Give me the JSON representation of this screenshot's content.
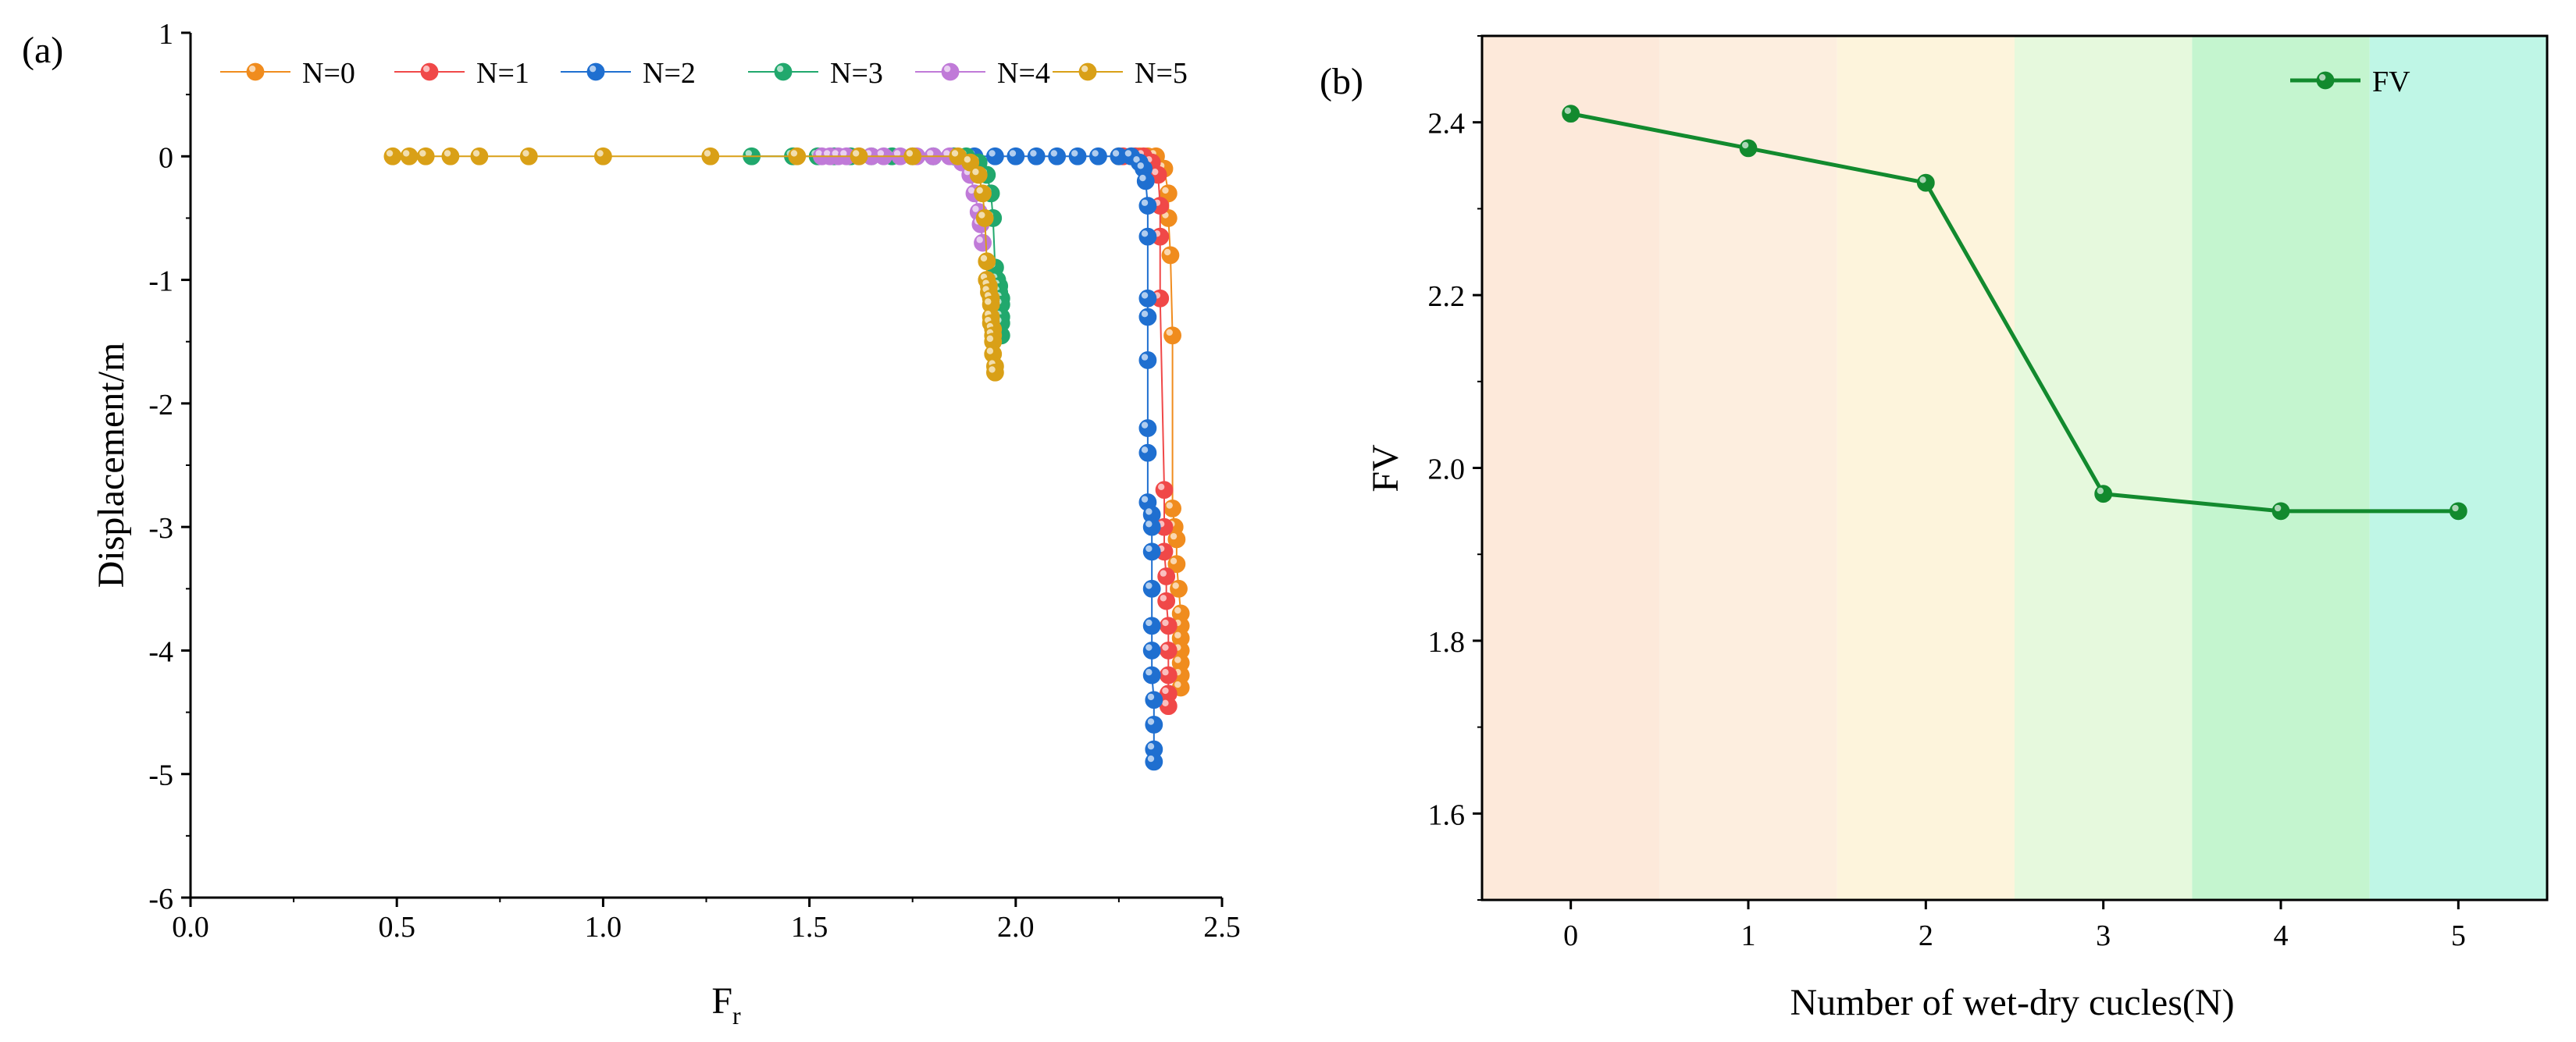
{
  "chart_data": [
    {
      "panel": "(a)",
      "type": "scatter",
      "xlabel": "F",
      "xlabel_sub": "r",
      "ylabel": "Displacement/m",
      "xlim": [
        0.0,
        2.5
      ],
      "ylim": [
        -6,
        1
      ],
      "xticks": [
        0.0,
        0.5,
        1.0,
        1.5,
        2.0,
        2.5
      ],
      "xtick_labels": [
        "0.0",
        "0.5",
        "1.0",
        "1.5",
        "2.0",
        "2.5"
      ],
      "yticks": [
        1,
        0,
        -1,
        -2,
        -3,
        -4,
        -5,
        -6
      ],
      "ytick_labels": [
        "1",
        "0",
        "-1",
        "-2",
        "-3",
        "-4",
        "-5",
        "-6"
      ],
      "legend_position": "top",
      "series": [
        {
          "name": "N=0",
          "color": "#f08c1e",
          "x": [
            2.25,
            2.28,
            2.3,
            2.32,
            2.34,
            2.36,
            2.37,
            2.37,
            2.375,
            2.38,
            2.38,
            2.385,
            2.39,
            2.39,
            2.395,
            2.4,
            2.4,
            2.4,
            2.4,
            2.4,
            2.4,
            2.4
          ],
          "y": [
            0,
            0,
            0,
            0,
            0,
            -0.1,
            -0.3,
            -0.5,
            -0.8,
            -1.45,
            -2.85,
            -3.0,
            -3.1,
            -3.3,
            -3.5,
            -3.7,
            -3.8,
            -3.9,
            -4.0,
            -4.1,
            -4.2,
            -4.3
          ]
        },
        {
          "name": "N=1",
          "color": "#f04848",
          "x": [
            2.26,
            2.29,
            2.31,
            2.33,
            2.345,
            2.35,
            2.35,
            2.35,
            2.36,
            2.36,
            2.36,
            2.365,
            2.365,
            2.37,
            2.37,
            2.37,
            2.37,
            2.37
          ],
          "y": [
            0,
            0,
            0,
            -0.05,
            -0.15,
            -0.4,
            -0.65,
            -1.15,
            -2.7,
            -3.0,
            -3.2,
            -3.4,
            -3.6,
            -3.8,
            -4.0,
            -4.2,
            -4.35,
            -4.45
          ]
        },
        {
          "name": "N=2",
          "color": "#1f6fd0",
          "x": [
            1.8,
            1.85,
            1.9,
            1.95,
            2.0,
            2.05,
            2.1,
            2.15,
            2.2,
            2.25,
            2.28,
            2.3,
            2.31,
            2.315,
            2.32,
            2.32,
            2.32,
            2.32,
            2.32,
            2.32,
            2.32,
            2.32,
            2.33,
            2.33,
            2.33,
            2.33,
            2.33,
            2.33,
            2.33,
            2.335,
            2.335,
            2.335,
            2.335
          ],
          "y": [
            0,
            0,
            0,
            0,
            0,
            0,
            0,
            0,
            0,
            0,
            0,
            -0.05,
            -0.1,
            -0.2,
            -0.4,
            -0.65,
            -1.15,
            -1.3,
            -1.65,
            -2.2,
            -2.4,
            -2.8,
            -2.9,
            -3.0,
            -3.2,
            -3.5,
            -3.8,
            -4.0,
            -4.2,
            -4.4,
            -4.6,
            -4.8,
            -4.9
          ]
        },
        {
          "name": "N=3",
          "color": "#21a86d",
          "x": [
            1.36,
            1.46,
            1.52,
            1.56,
            1.6,
            1.65,
            1.7,
            1.75,
            1.8,
            1.85,
            1.88,
            1.91,
            1.93,
            1.94,
            1.945,
            1.95,
            1.955,
            1.96,
            1.96,
            1.965,
            1.965,
            1.965,
            1.965,
            1.965
          ],
          "y": [
            0,
            0,
            0,
            0,
            0,
            0,
            0,
            0,
            0,
            0,
            0,
            -0.05,
            -0.15,
            -0.3,
            -0.5,
            -0.9,
            -1.0,
            -1.05,
            -1.1,
            -1.15,
            -1.2,
            -1.3,
            -1.35,
            -1.45
          ]
        },
        {
          "name": "N=4",
          "color": "#c07ad8",
          "x": [
            1.53,
            1.55,
            1.57,
            1.59,
            1.62,
            1.65,
            1.68,
            1.72,
            1.76,
            1.8,
            1.84,
            1.87,
            1.89,
            1.9,
            1.91,
            1.915,
            1.92
          ],
          "y": [
            0,
            0,
            0,
            0,
            0,
            0,
            0,
            0,
            0,
            0,
            0,
            -0.05,
            -0.15,
            -0.3,
            -0.45,
            -0.55,
            -0.7
          ]
        },
        {
          "name": "N=5",
          "color": "#d9a017",
          "x": [
            0.49,
            0.53,
            0.57,
            0.63,
            0.7,
            0.82,
            1.0,
            1.26,
            1.47,
            1.62,
            1.75,
            1.86,
            1.89,
            1.91,
            1.92,
            1.925,
            1.93,
            1.93,
            1.935,
            1.935,
            1.94,
            1.94,
            1.94,
            1.94,
            1.945,
            1.945,
            1.945,
            1.945,
            1.95,
            1.95
          ],
          "y": [
            0,
            0,
            0,
            0,
            0,
            0,
            0,
            0,
            0,
            0,
            0,
            0,
            -0.05,
            -0.15,
            -0.3,
            -0.5,
            -0.85,
            -1.0,
            -1.05,
            -1.1,
            -1.15,
            -1.2,
            -1.3,
            -1.35,
            -1.4,
            -1.45,
            -1.5,
            -1.6,
            -1.7,
            -1.75
          ]
        }
      ]
    },
    {
      "panel": "(b)",
      "type": "line",
      "xlabel": "Number of wet-dry cucles(N)",
      "ylabel": "FV",
      "categories": [
        "0",
        "1",
        "2",
        "3",
        "4",
        "5"
      ],
      "x": [
        0,
        1,
        2,
        3,
        4,
        5
      ],
      "xlim": [
        -0.5,
        5.5
      ],
      "ylim": [
        1.5,
        2.5
      ],
      "yticks": [
        1.6,
        1.8,
        2.0,
        2.2,
        2.4
      ],
      "ytick_labels": [
        "1.6",
        "1.8",
        "2.0",
        "2.2",
        "2.4"
      ],
      "legend_position": "top-right",
      "series": [
        {
          "name": "FV",
          "color": "#128a2e",
          "values": [
            2.41,
            2.37,
            2.33,
            1.97,
            1.95,
            1.95
          ]
        }
      ],
      "background_bands": [
        "#fde9da",
        "#fdeedf",
        "#fdf4dc",
        "#e6f9dd",
        "#c4f5cf",
        "#bff6e6"
      ]
    }
  ]
}
